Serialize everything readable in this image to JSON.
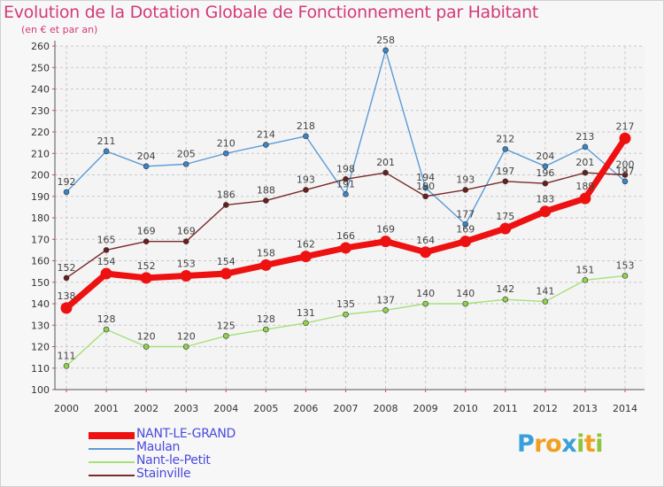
{
  "chart_data": {
    "type": "line",
    "title": "Evolution de la Dotation Globale de Fonctionnement par Habitant",
    "subtitle": "(en € et par an)",
    "categories": [
      "2000",
      "2001",
      "2002",
      "2003",
      "2004",
      "2005",
      "2006",
      "2007",
      "2008",
      "2009",
      "2010",
      "2011",
      "2012",
      "2013",
      "2014"
    ],
    "ylim": [
      100,
      260
    ],
    "ytick_step": 10,
    "yticks": [
      "100",
      "110",
      "120",
      "130",
      "140",
      "150",
      "160",
      "170",
      "180",
      "190",
      "200",
      "210",
      "220",
      "230",
      "240",
      "250",
      "260"
    ],
    "grid": true,
    "series": [
      {
        "name": "Maulan",
        "color": "#5b9bd5",
        "marker": "#3a84c4",
        "values": [
          192,
          211,
          204,
          205,
          210,
          214,
          218,
          191,
          258,
          194,
          177,
          212,
          204,
          213,
          197
        ]
      },
      {
        "name": "Nant-le-Petit",
        "color": "#a6e07a",
        "marker": "#8ed24f",
        "values": [
          111,
          128,
          120,
          120,
          125,
          128,
          131,
          135,
          137,
          140,
          140,
          142,
          141,
          151,
          153
        ]
      },
      {
        "name": "Stainville",
        "color": "#7a2a2a",
        "marker": "#6b1e1e",
        "values": [
          152,
          165,
          169,
          169,
          186,
          188,
          193,
          198,
          201,
          190,
          193,
          197,
          196,
          201,
          200
        ]
      },
      {
        "name": "NANT-LE-GRAND",
        "color": "#ee1111",
        "marker": "#ee1111",
        "values": [
          138,
          154,
          152,
          153,
          154,
          158,
          162,
          166,
          169,
          164,
          169,
          175,
          183,
          189,
          217
        ]
      }
    ]
  },
  "legend": {
    "items": [
      {
        "label": "NANT-LE-GRAND",
        "color": "#ee1111"
      },
      {
        "label": "Maulan",
        "color": "#5b9bd5"
      },
      {
        "label": "Nant-le-Petit",
        "color": "#a6e07a"
      },
      {
        "label": "Stainville",
        "color": "#7a2a2a"
      }
    ]
  },
  "logo": {
    "letters": [
      "P",
      "r",
      "o",
      "x",
      "i",
      "t",
      "i"
    ],
    "colors": [
      "#3aa0dc",
      "#f0a020",
      "#f0a020",
      "#3aa0dc",
      "#8cc63f",
      "#f0a020",
      "#8cc63f"
    ]
  }
}
